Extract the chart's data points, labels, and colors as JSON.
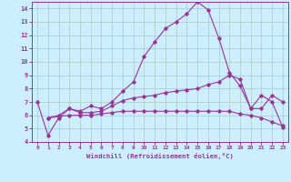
{
  "xlabel": "Windchill (Refroidissement éolien,°C)",
  "ylabel": "",
  "bg_color": "#cceeff",
  "grid_color": "#aaccbb",
  "line_color": "#993399",
  "xlim": [
    -0.5,
    23.5
  ],
  "ylim": [
    4,
    14.5
  ],
  "yticks": [
    4,
    5,
    6,
    7,
    8,
    9,
    10,
    11,
    12,
    13,
    14
  ],
  "xticks": [
    0,
    1,
    2,
    3,
    4,
    5,
    6,
    7,
    8,
    9,
    10,
    11,
    12,
    13,
    14,
    15,
    16,
    17,
    18,
    19,
    20,
    21,
    22,
    23
  ],
  "line1_x": [
    0,
    1,
    2,
    3,
    4,
    5,
    6,
    7,
    8,
    9,
    10,
    11,
    12,
    13,
    14,
    15,
    16,
    17,
    18,
    19,
    20,
    21,
    22,
    23
  ],
  "line1_y": [
    7.0,
    4.5,
    5.8,
    6.5,
    6.3,
    6.7,
    6.5,
    7.0,
    7.8,
    8.5,
    10.4,
    11.5,
    12.5,
    13.0,
    13.6,
    14.5,
    13.9,
    11.8,
    9.2,
    8.2,
    6.5,
    7.5,
    7.0,
    5.1
  ],
  "line2_x": [
    1,
    2,
    3,
    4,
    5,
    6,
    7,
    8,
    9,
    10,
    11,
    12,
    13,
    14,
    15,
    16,
    17,
    18,
    19,
    20,
    21,
    22,
    23
  ],
  "line2_y": [
    5.8,
    6.0,
    6.5,
    6.2,
    6.2,
    6.3,
    6.7,
    7.1,
    7.3,
    7.4,
    7.5,
    7.7,
    7.8,
    7.9,
    8.0,
    8.3,
    8.5,
    9.0,
    8.7,
    6.5,
    6.5,
    7.5,
    7.0
  ],
  "line3_x": [
    1,
    2,
    3,
    4,
    5,
    6,
    7,
    8,
    9,
    10,
    11,
    12,
    13,
    14,
    15,
    16,
    17,
    18,
    19,
    20,
    21,
    22,
    23
  ],
  "line3_y": [
    5.8,
    5.9,
    6.0,
    6.0,
    6.0,
    6.1,
    6.2,
    6.3,
    6.3,
    6.3,
    6.3,
    6.3,
    6.3,
    6.3,
    6.3,
    6.3,
    6.3,
    6.3,
    6.1,
    6.0,
    5.8,
    5.5,
    5.2
  ]
}
